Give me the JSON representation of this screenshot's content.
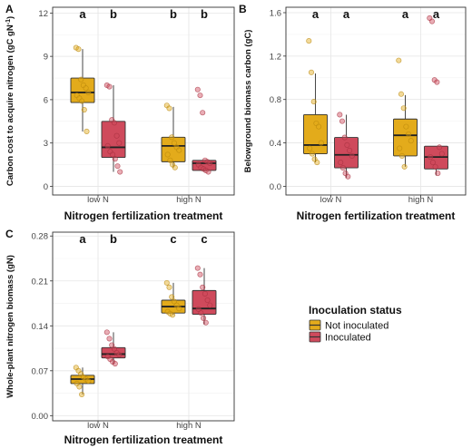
{
  "figure": {
    "panel_labels": [
      "A",
      "B",
      "C"
    ],
    "legend": {
      "title": "Inoculation status",
      "items": [
        {
          "label": "Not inoculated",
          "color": "#E3AB1B"
        },
        {
          "label": "Inoculated",
          "color": "#CF4A5C"
        }
      ]
    }
  },
  "chart_data": [
    {
      "panel": "A",
      "type": "box",
      "categories": [
        "low N",
        "high N"
      ],
      "xlabel": "Nitrogen fertilization treatment",
      "ylabel": "Carbon cost to acquire nitrogen (gC gN",
      "ylabel_sup": "-1",
      "ylabel_tail": ")",
      "ylim": [
        -0.6,
        12.4
      ],
      "yticks": [
        0,
        3,
        6,
        9,
        12
      ],
      "grid": true,
      "letters": [
        "a",
        "b",
        "b",
        "b"
      ],
      "series": [
        {
          "name": "Not inoculated",
          "color": "#E3AB1B",
          "boxes": [
            {
              "min": 3.8,
              "q1": 5.8,
              "median": 6.5,
              "q3": 7.5,
              "max": 9.5,
              "points": [
                9.6,
                9.5,
                7.4,
                7.0,
                6.8,
                6.5,
                6.3,
                6.1,
                5.9,
                5.3,
                3.8
              ]
            },
            {
              "min": 1.3,
              "q1": 1.7,
              "median": 2.8,
              "q3": 3.4,
              "max": 5.5,
              "points": [
                5.6,
                5.4,
                3.4,
                3.0,
                2.7,
                2.5,
                2.2,
                1.8,
                1.5,
                1.3
              ]
            }
          ]
        },
        {
          "name": "Inoculated",
          "color": "#CF4A5C",
          "boxes": [
            {
              "min": 1.0,
              "q1": 2.0,
              "median": 2.7,
              "q3": 4.5,
              "max": 7.0,
              "points": [
                7.0,
                6.9,
                4.6,
                4.4,
                3.5,
                3.0,
                2.8,
                2.4,
                2.2,
                1.9,
                1.4,
                1.0
              ]
            },
            {
              "min": 1.0,
              "q1": 1.1,
              "median": 1.6,
              "q3": 1.8,
              "max": 1.8,
              "points": [
                6.7,
                6.3,
                5.1,
                1.8,
                1.7,
                1.6,
                1.5,
                1.3,
                1.2,
                1.1,
                1.0
              ]
            }
          ]
        }
      ]
    },
    {
      "panel": "B",
      "type": "box",
      "categories": [
        "low N",
        "high N"
      ],
      "xlabel": "Nitrogen fertilization treatment",
      "ylabel": "Belowground biomass carbon (gC)",
      "ylim": [
        -0.08,
        1.65
      ],
      "yticks": [
        0.0,
        0.4,
        0.8,
        1.2,
        1.6
      ],
      "tick_format": 1,
      "grid": true,
      "letters": [
        "a",
        "a",
        "a",
        "a"
      ],
      "series": [
        {
          "name": "Not inoculated",
          "color": "#E3AB1B",
          "boxes": [
            {
              "min": 0.22,
              "q1": 0.3,
              "median": 0.38,
              "q3": 0.66,
              "max": 1.04,
              "points": [
                1.34,
                1.05,
                0.78,
                0.58,
                0.55,
                0.4,
                0.35,
                0.3,
                0.25,
                0.22
              ]
            },
            {
              "min": 0.18,
              "q1": 0.28,
              "median": 0.47,
              "q3": 0.62,
              "max": 0.84,
              "points": [
                1.16,
                0.85,
                0.72,
                0.55,
                0.48,
                0.42,
                0.35,
                0.28,
                0.18
              ]
            }
          ]
        },
        {
          "name": "Inoculated",
          "color": "#CF4A5C",
          "boxes": [
            {
              "min": 0.08,
              "q1": 0.17,
              "median": 0.29,
              "q3": 0.45,
              "max": 0.66,
              "points": [
                0.66,
                0.6,
                0.45,
                0.38,
                0.33,
                0.28,
                0.22,
                0.17,
                0.12,
                0.09
              ]
            },
            {
              "min": 0.1,
              "q1": 0.16,
              "median": 0.27,
              "q3": 0.37,
              "max": 0.37,
              "points": [
                1.55,
                1.52,
                0.98,
                0.96,
                0.36,
                0.3,
                0.27,
                0.22,
                0.18,
                0.12
              ]
            }
          ]
        }
      ]
    },
    {
      "panel": "C",
      "type": "box",
      "categories": [
        "low N",
        "high N"
      ],
      "xlabel": "Nitrogen fertilization treatment",
      "ylabel": "Whole-plant nitrogen biomass (gN)",
      "ylim": [
        -0.008,
        0.286
      ],
      "yticks": [
        0.0,
        0.07,
        0.14,
        0.21,
        0.28
      ],
      "tick_format": 2,
      "grid": true,
      "letters": [
        "a",
        "b",
        "c",
        "c"
      ],
      "series": [
        {
          "name": "Not inoculated",
          "color": "#E3AB1B",
          "boxes": [
            {
              "min": 0.033,
              "q1": 0.05,
              "median": 0.057,
              "q3": 0.063,
              "max": 0.075,
              "points": [
                0.075,
                0.07,
                0.065,
                0.06,
                0.057,
                0.054,
                0.05,
                0.045,
                0.033
              ]
            },
            {
              "min": 0.157,
              "q1": 0.16,
              "median": 0.17,
              "q3": 0.18,
              "max": 0.207,
              "points": [
                0.207,
                0.2,
                0.185,
                0.178,
                0.172,
                0.167,
                0.162,
                0.159,
                0.157
              ]
            }
          ]
        },
        {
          "name": "Inoculated",
          "color": "#CF4A5C",
          "boxes": [
            {
              "min": 0.08,
              "q1": 0.09,
              "median": 0.096,
              "q3": 0.106,
              "max": 0.13,
              "points": [
                0.13,
                0.12,
                0.11,
                0.104,
                0.098,
                0.095,
                0.092,
                0.088,
                0.084,
                0.081
              ]
            },
            {
              "min": 0.142,
              "q1": 0.158,
              "median": 0.167,
              "q3": 0.195,
              "max": 0.23,
              "points": [
                0.23,
                0.22,
                0.2,
                0.19,
                0.18,
                0.172,
                0.166,
                0.16,
                0.152,
                0.145
              ]
            }
          ]
        }
      ]
    }
  ]
}
